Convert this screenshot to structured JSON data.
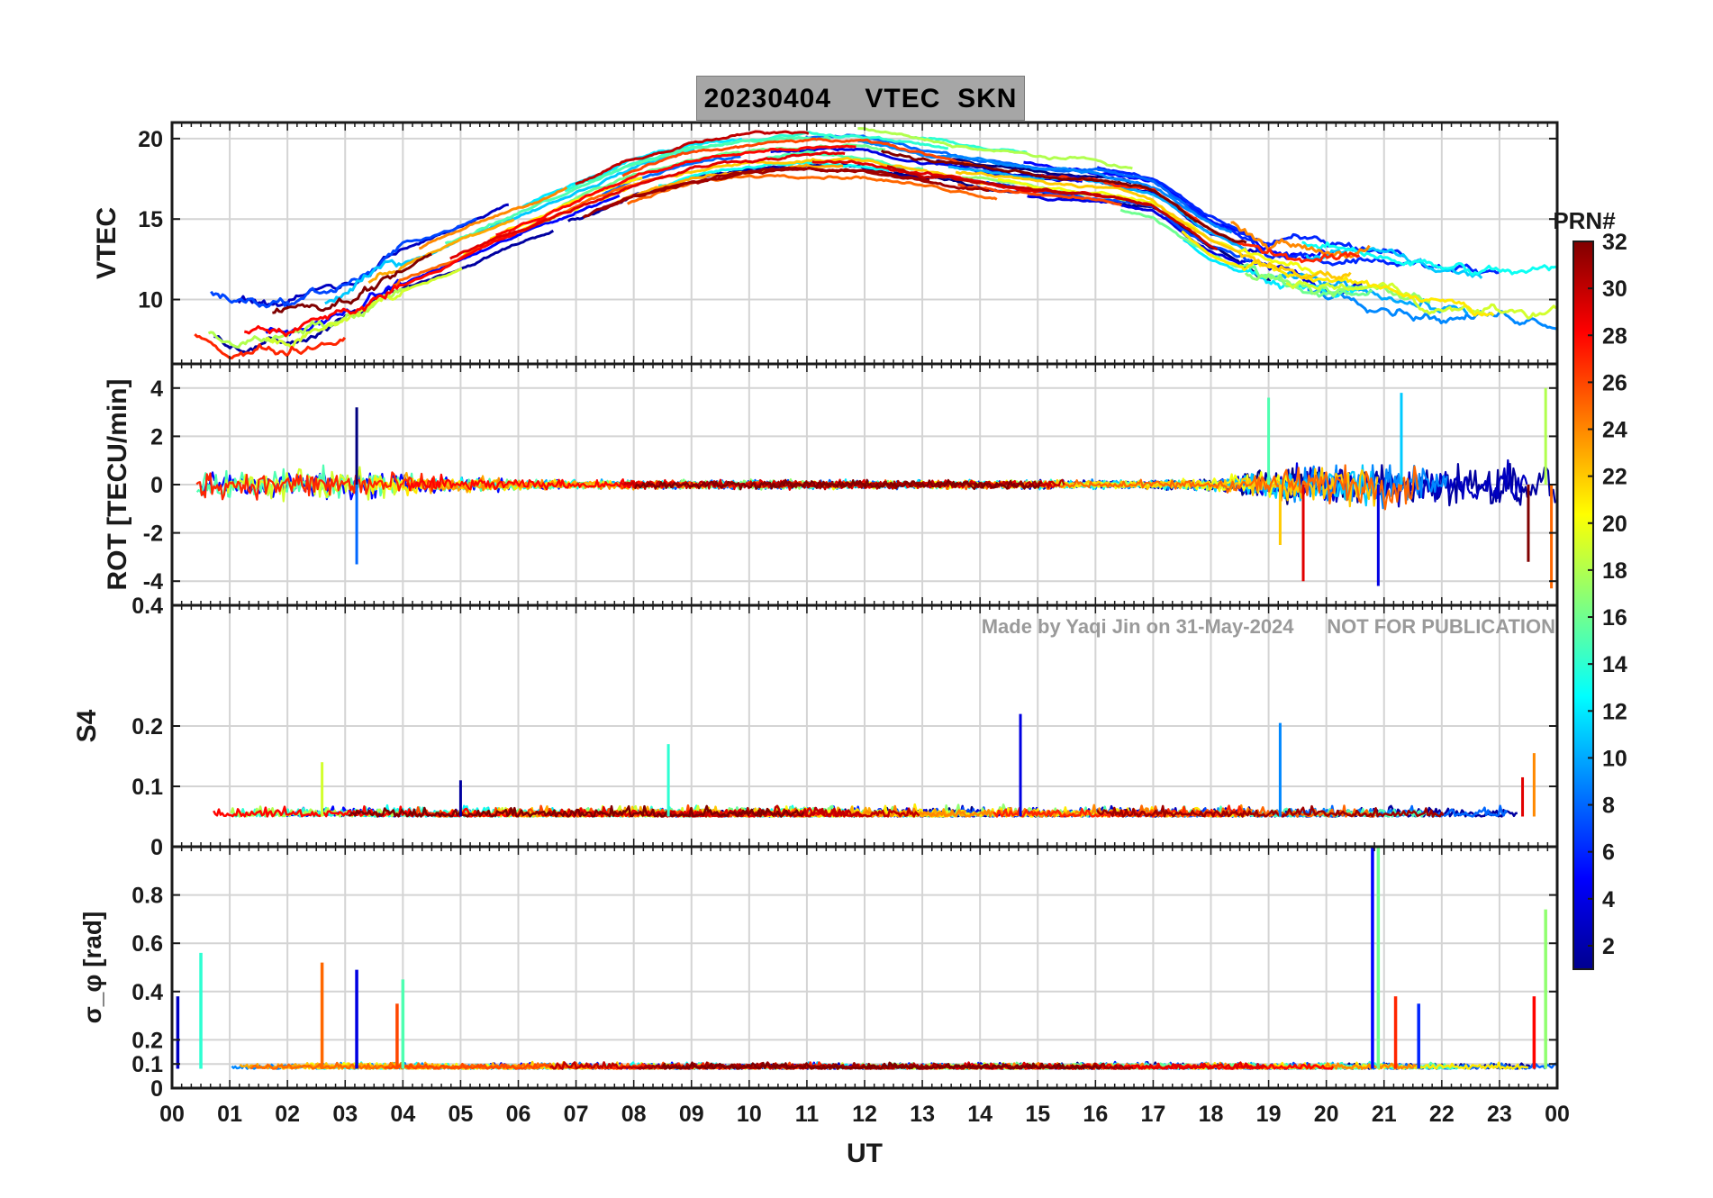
{
  "title": "20230404    VTEC  SKN",
  "watermark": "Made by Yaqi Jin on 31-May-2024      NOT FOR PUBLICATION",
  "colorbar": {
    "label": "PRN#",
    "ticks": [
      2,
      4,
      6,
      8,
      10,
      12,
      14,
      16,
      18,
      20,
      22,
      24,
      26,
      28,
      30,
      32
    ],
    "range": [
      1,
      32
    ],
    "colormap": "jet"
  },
  "x_axis": {
    "label": "UT",
    "ticks": [
      "00",
      "01",
      "02",
      "03",
      "04",
      "05",
      "06",
      "07",
      "08",
      "09",
      "10",
      "11",
      "12",
      "13",
      "14",
      "15",
      "16",
      "17",
      "18",
      "19",
      "20",
      "21",
      "22",
      "23",
      "00"
    ],
    "range_hours": [
      0,
      24
    ]
  },
  "chart_data": [
    {
      "type": "line",
      "panel": "vtec",
      "ylabel": "VTEC",
      "ylim": [
        6,
        21
      ],
      "yticks": [
        10,
        15,
        20
      ],
      "grid": true,
      "description_series_count": 32,
      "anchors_x_hours": [
        0,
        1,
        2,
        3,
        4,
        5,
        6,
        7,
        8,
        9,
        10,
        11,
        12,
        13,
        14,
        15,
        16,
        17,
        18,
        19,
        20,
        21,
        22,
        23,
        24
      ],
      "envelope_y": [
        10,
        8.5,
        8.5,
        9.5,
        11.5,
        13,
        14.5,
        16,
        17.5,
        18.5,
        19,
        19.3,
        19.2,
        18.5,
        18,
        17.5,
        17.2,
        16.5,
        14,
        12.5,
        12,
        12,
        11,
        10.5,
        10.5
      ]
    },
    {
      "type": "line",
      "panel": "rot",
      "ylabel": "ROT [TECU/min]",
      "ylim": [
        -5,
        5
      ],
      "yticks": [
        -4,
        -2,
        0,
        2,
        4
      ],
      "grid": true,
      "noise_amplitude_by_hour": [
        1.2,
        1.0,
        0.9,
        1.2,
        0.8,
        0.5,
        0.4,
        0.3,
        0.3,
        0.3,
        0.3,
        0.3,
        0.3,
        0.3,
        0.3,
        0.3,
        0.3,
        0.3,
        0.4,
        1.0,
        1.3,
        1.5,
        1.5,
        1.6,
        1.8
      ],
      "spikes": [
        {
          "x": 3.2,
          "y": 3.2
        },
        {
          "x": 3.2,
          "y": -3.3
        },
        {
          "x": 19.0,
          "y": 3.6
        },
        {
          "x": 19.2,
          "y": -2.5
        },
        {
          "x": 19.6,
          "y": -4.0
        },
        {
          "x": 20.9,
          "y": -4.2
        },
        {
          "x": 21.3,
          "y": 3.8
        },
        {
          "x": 23.8,
          "y": 4.0
        },
        {
          "x": 23.9,
          "y": -4.3
        },
        {
          "x": 23.5,
          "y": -3.2
        }
      ]
    },
    {
      "type": "line",
      "panel": "s4",
      "ylabel": "S4",
      "ylim": [
        0,
        0.4
      ],
      "yticks": [
        0,
        0.1,
        0.2,
        0.4
      ],
      "grid": true,
      "baseline": 0.05,
      "spikes": [
        {
          "x": 14.7,
          "y": 0.22
        },
        {
          "x": 19.2,
          "y": 0.205
        },
        {
          "x": 8.6,
          "y": 0.17
        },
        {
          "x": 2.6,
          "y": 0.14
        },
        {
          "x": 23.6,
          "y": 0.155
        },
        {
          "x": 23.4,
          "y": 0.115
        },
        {
          "x": 5.0,
          "y": 0.11
        }
      ]
    },
    {
      "type": "line",
      "panel": "sigma_phi",
      "ylabel": "σ_φ [rad]",
      "ylim": [
        0,
        1.0
      ],
      "yticks": [
        0,
        0.1,
        0.2,
        0.4,
        0.6,
        0.8
      ],
      "grid": true,
      "baseline": 0.08,
      "spikes": [
        {
          "x": 0.1,
          "y": 0.38
        },
        {
          "x": 0.5,
          "y": 0.56
        },
        {
          "x": 2.6,
          "y": 0.52
        },
        {
          "x": 3.2,
          "y": 0.49
        },
        {
          "x": 4.0,
          "y": 0.45
        },
        {
          "x": 3.9,
          "y": 0.35
        },
        {
          "x": 20.8,
          "y": 1.0
        },
        {
          "x": 20.9,
          "y": 1.0
        },
        {
          "x": 21.2,
          "y": 0.38
        },
        {
          "x": 21.6,
          "y": 0.35
        },
        {
          "x": 23.8,
          "y": 0.74
        },
        {
          "x": 23.6,
          "y": 0.38
        }
      ]
    }
  ]
}
